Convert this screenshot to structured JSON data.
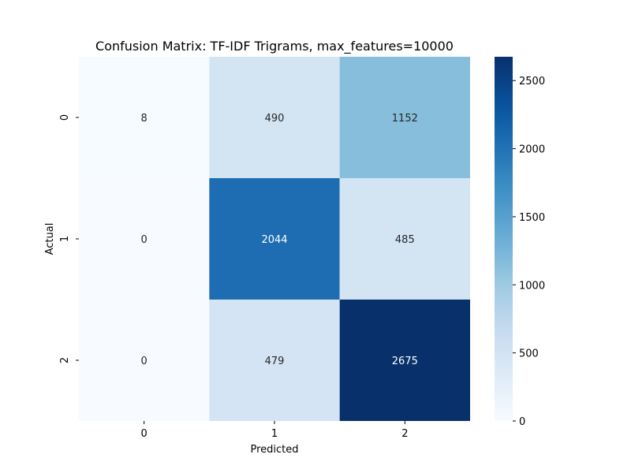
{
  "chart_data": {
    "type": "heatmap",
    "title": "Confusion Matrix: TF-IDF Trigrams, max_features=10000",
    "xlabel": "Predicted",
    "ylabel": "Actual",
    "x_categories": [
      "0",
      "1",
      "2"
    ],
    "y_categories": [
      "0",
      "1",
      "2"
    ],
    "values": [
      [
        8,
        490,
        1152
      ],
      [
        0,
        2044,
        485
      ],
      [
        0,
        479,
        2675
      ]
    ],
    "colormap": "Blues",
    "value_range": [
      0,
      2675
    ],
    "colorbar": {
      "ticks": [
        0,
        500,
        1000,
        1500,
        2000,
        2500
      ],
      "tick_labels": [
        "0",
        "500",
        "1000",
        "1500",
        "2000",
        "2500"
      ]
    },
    "grid": false,
    "legend": "colorbar-right"
  }
}
